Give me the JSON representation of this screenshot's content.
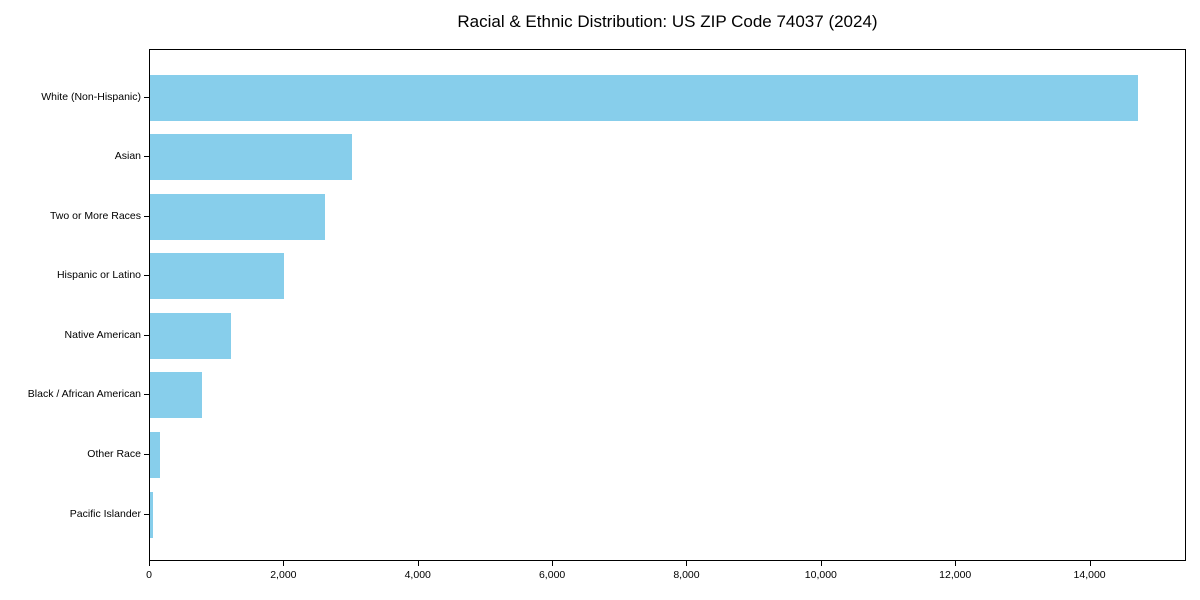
{
  "chart_data": {
    "type": "bar",
    "orientation": "horizontal",
    "title": "Racial & Ethnic Distribution: US ZIP Code 74037 (2024)",
    "categories": [
      "White (Non-Hispanic)",
      "Asian",
      "Two or More Races",
      "Hispanic or Latino",
      "Native American",
      "Black / African American",
      "Other Race",
      "Pacific Islander"
    ],
    "values": [
      14700,
      3000,
      2600,
      2000,
      1200,
      780,
      150,
      40
    ],
    "xlabel": "",
    "ylabel": "",
    "xlim": [
      0,
      15435
    ],
    "x_ticks": [
      0,
      2000,
      4000,
      6000,
      8000,
      10000,
      12000,
      14000
    ],
    "x_tick_labels": [
      "0",
      "2,000",
      "4,000",
      "6,000",
      "8,000",
      "10,000",
      "12,000",
      "14,000"
    ],
    "bar_color": "#87CEEB",
    "spine_color": "#000000",
    "text_color": "#000000",
    "grid": false,
    "legend": null
  }
}
